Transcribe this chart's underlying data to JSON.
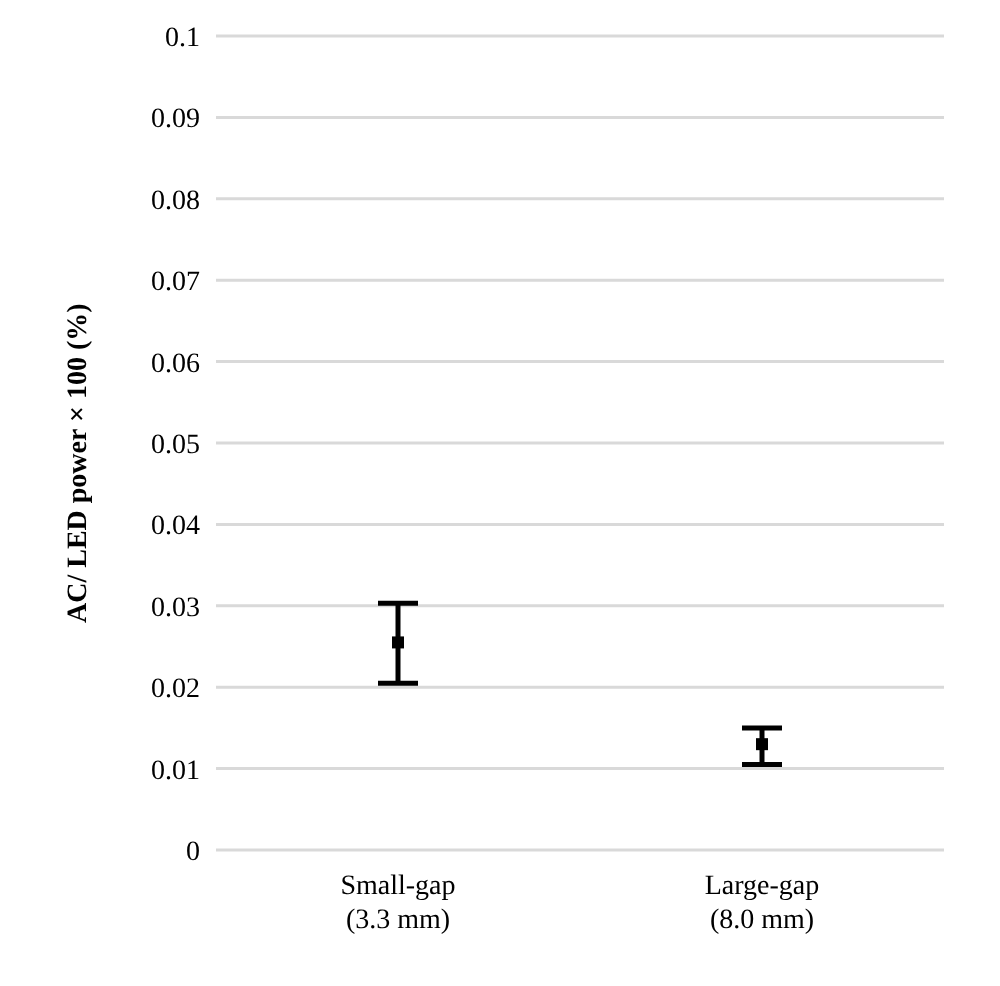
{
  "chart_data": {
    "type": "scatter",
    "ylabel": "AC/ LED  power × 100 (%)",
    "categories": [
      "Small-gap\n(3.3 mm)",
      "Large-gap\n(8.0 mm)"
    ],
    "series": [
      {
        "color": "#000000",
        "values": [
          0.0255,
          0.013
        ],
        "errors": [
          [
            0.0205,
            0.0303
          ],
          [
            0.0105,
            0.015
          ]
        ]
      }
    ],
    "ylim": [
      0,
      0.1
    ],
    "yticks": [
      0,
      0.01,
      0.02,
      0.03,
      0.04,
      0.05,
      0.06,
      0.07,
      0.08,
      0.09,
      0.1
    ],
    "grid": "y",
    "marker": "square"
  }
}
